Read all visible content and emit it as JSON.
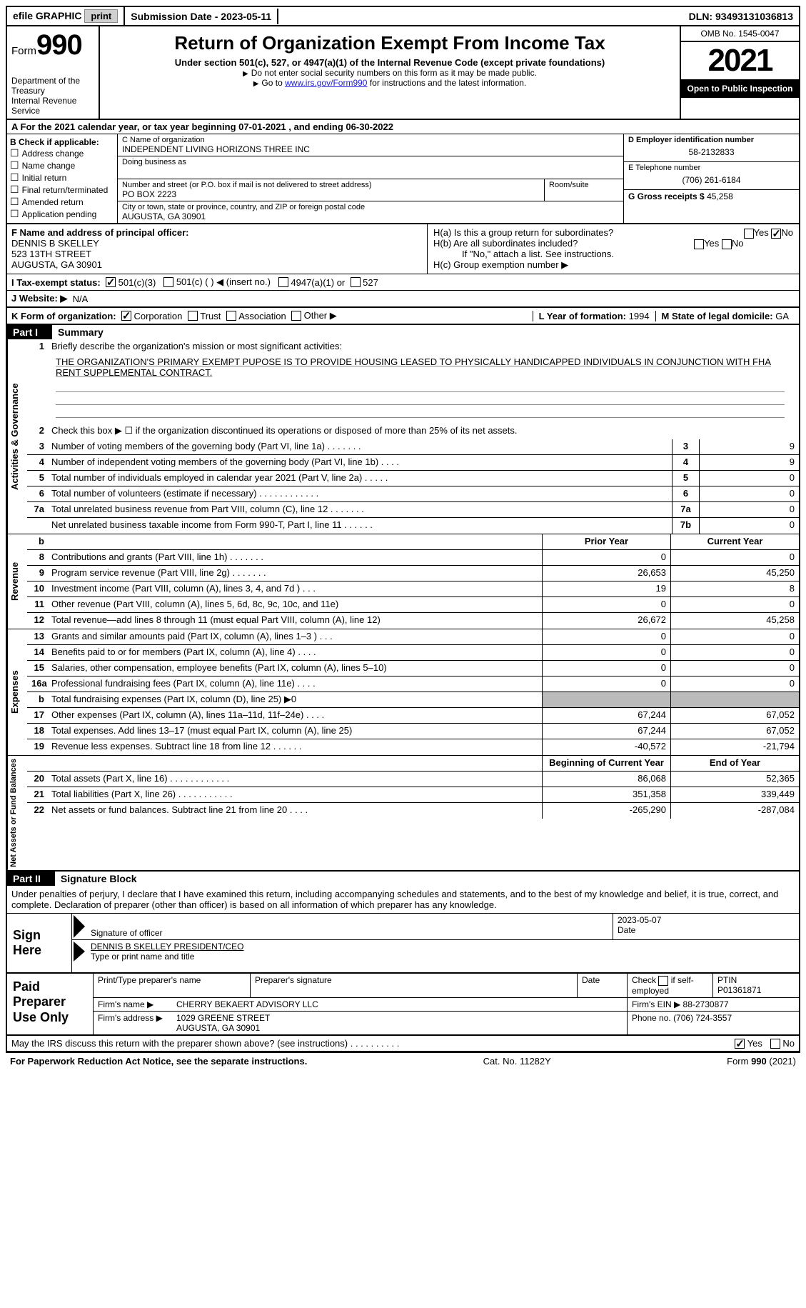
{
  "topbar": {
    "efile": "efile GRAPHIC",
    "print": "print",
    "submission_label": "Submission Date - ",
    "submission_date": "2023-05-11",
    "dln_label": "DLN: ",
    "dln": "93493131036813"
  },
  "header": {
    "form_label": "Form",
    "form_no": "990",
    "dept": "Department of the Treasury",
    "irs": "Internal Revenue Service",
    "title": "Return of Organization Exempt From Income Tax",
    "sub": "Under section 501(c), 527, or 4947(a)(1) of the Internal Revenue Code (except private foundations)",
    "note1": "Do not enter social security numbers on this form as it may be made public.",
    "note2_pre": "Go to ",
    "note2_link": "www.irs.gov/Form990",
    "note2_post": " for instructions and the latest information.",
    "omb": "OMB No. 1545-0047",
    "year": "2021",
    "otpi": "Open to Public Inspection"
  },
  "line_a": {
    "text": "For the 2021 calendar year, or tax year beginning 07-01-2021    , and ending 06-30-2022"
  },
  "box_b": {
    "title": "B Check if applicable:",
    "items": [
      "Address change",
      "Name change",
      "Initial return",
      "Final return/terminated",
      "Amended return",
      "Application pending"
    ]
  },
  "box_c": {
    "name_label": "C Name of organization",
    "name": "INDEPENDENT LIVING HORIZONS THREE INC",
    "dba_label": "Doing business as",
    "dba": "",
    "addr_label": "Number and street (or P.O. box if mail is not delivered to street address)",
    "room_label": "Room/suite",
    "addr": "PO BOX 2223",
    "city_label": "City or town, state or province, country, and ZIP or foreign postal code",
    "city": "AUGUSTA, GA  30901"
  },
  "box_d": {
    "ein_label": "D Employer identification number",
    "ein": "58-2132833",
    "tel_label": "E Telephone number",
    "tel": "(706) 261-6184",
    "g_label": "G Gross receipts $",
    "g_val": "45,258"
  },
  "box_f": {
    "label": "F  Name and address of principal officer:",
    "name": "DENNIS B SKELLEY",
    "street": "523 13TH STREET",
    "city": "AUGUSTA, GA  30901"
  },
  "box_h": {
    "ha": "H(a)  Is this a group return for subordinates?",
    "hb": "H(b)  Are all subordinates included?",
    "hb_note": "If \"No,\" attach a list. See instructions.",
    "hc": "H(c)  Group exemption number ▶",
    "yes": "Yes",
    "no": "No"
  },
  "line_i": {
    "label": "I    Tax-exempt status:",
    "o1": "501(c)(3)",
    "o2": "501(c) (   ) ◀ (insert no.)",
    "o3": "4947(a)(1) or",
    "o4": "527"
  },
  "line_j": {
    "label": "J   Website: ▶",
    "val": "N/A"
  },
  "line_k": {
    "label": "K Form of organization:",
    "o1": "Corporation",
    "o2": "Trust",
    "o3": "Association",
    "o4": "Other ▶",
    "l_label": "L Year of formation:",
    "l_val": "1994",
    "m_label": "M State of legal domicile:",
    "m_val": "GA"
  },
  "parts": {
    "p1": "Part I",
    "p1t": "Summary",
    "p2": "Part II",
    "p2t": "Signature Block"
  },
  "summary": {
    "q1": "Briefly describe the organization's mission or most significant activities:",
    "mission": "THE ORGANIZATION'S PRIMARY EXEMPT PUPOSE IS TO PROVIDE HOUSING LEASED TO PHYSICALLY HANDICAPPED INDIVIDUALS IN CONJUNCTION WITH FHA RENT SUPPLEMENTAL CONTRACT.",
    "q2": "Check this box ▶ ☐  if the organization discontinued its operations or disposed of more than 25% of its net assets.",
    "rows_ag": [
      {
        "n": "3",
        "d": "Number of voting members of the governing body (Part VI, line 1a)   .    .    .    .    .    .    .",
        "c": "3",
        "v": "9"
      },
      {
        "n": "4",
        "d": "Number of independent voting members of the governing body (Part VI, line 1b)   .   .   .   .",
        "c": "4",
        "v": "9"
      },
      {
        "n": "5",
        "d": "Total number of individuals employed in calendar year 2021 (Part V, line 2a)   .   .   .   .   .",
        "c": "5",
        "v": "0"
      },
      {
        "n": "6",
        "d": "Total number of volunteers (estimate if necessary)   .   .   .   .   .   .   .   .   .   .   .   .",
        "c": "6",
        "v": "0"
      },
      {
        "n": "7a",
        "d": "Total unrelated business revenue from Part VIII, column (C), line 12   .   .   .   .   .   .   .",
        "c": "7a",
        "v": "0"
      },
      {
        "n": "",
        "d": "Net unrelated business taxable income from Form 990-T, Part I, line 11   .   .   .   .   .   .",
        "c": "7b",
        "v": "0"
      }
    ],
    "col_prior": "Prior Year",
    "col_current": "Current Year",
    "rows_rev": [
      {
        "n": "8",
        "d": "Contributions and grants (Part VIII, line 1h)   .   .   .   .   .   .   .",
        "p": "0",
        "c": "0"
      },
      {
        "n": "9",
        "d": "Program service revenue (Part VIII, line 2g)   .   .   .   .   .   .   .",
        "p": "26,653",
        "c": "45,250"
      },
      {
        "n": "10",
        "d": "Investment income (Part VIII, column (A), lines 3, 4, and 7d )   .   .   .",
        "p": "19",
        "c": "8"
      },
      {
        "n": "11",
        "d": "Other revenue (Part VIII, column (A), lines 5, 6d, 8c, 9c, 10c, and 11e)",
        "p": "0",
        "c": "0"
      },
      {
        "n": "12",
        "d": "Total revenue—add lines 8 through 11 (must equal Part VIII, column (A), line 12)",
        "p": "26,672",
        "c": "45,258"
      }
    ],
    "rows_exp": [
      {
        "n": "13",
        "d": "Grants and similar amounts paid (Part IX, column (A), lines 1–3 )   .   .   .",
        "p": "0",
        "c": "0"
      },
      {
        "n": "14",
        "d": "Benefits paid to or for members (Part IX, column (A), line 4)   .   .   .   .",
        "p": "0",
        "c": "0"
      },
      {
        "n": "15",
        "d": "Salaries, other compensation, employee benefits (Part IX, column (A), lines 5–10)",
        "p": "0",
        "c": "0"
      },
      {
        "n": "16a",
        "d": "Professional fundraising fees (Part IX, column (A), line 11e)   .   .   .   .",
        "p": "0",
        "c": "0"
      },
      {
        "n": "b",
        "d": "Total fundraising expenses (Part IX, column (D), line 25) ▶0",
        "p": "",
        "c": "",
        "gray": true
      },
      {
        "n": "17",
        "d": "Other expenses (Part IX, column (A), lines 11a–11d, 11f–24e)   .   .   .   .",
        "p": "67,244",
        "c": "67,052"
      },
      {
        "n": "18",
        "d": "Total expenses. Add lines 13–17 (must equal Part IX, column (A), line 25)",
        "p": "67,244",
        "c": "67,052"
      },
      {
        "n": "19",
        "d": "Revenue less expenses. Subtract line 18 from line 12   .   .   .   .   .   .",
        "p": "-40,572",
        "c": "-21,794"
      }
    ],
    "col_beg": "Beginning of Current Year",
    "col_end": "End of Year",
    "rows_na": [
      {
        "n": "20",
        "d": "Total assets (Part X, line 16)   .   .   .   .   .   .   .   .   .   .   .   .",
        "p": "86,068",
        "c": "52,365"
      },
      {
        "n": "21",
        "d": "Total liabilities (Part X, line 26)   .   .   .   .   .   .   .   .   .   .   .",
        "p": "351,358",
        "c": "339,449"
      },
      {
        "n": "22",
        "d": "Net assets or fund balances. Subtract line 21 from line 20   .   .   .   .",
        "p": "-265,290",
        "c": "-287,084"
      }
    ],
    "side_ag": "Activities & Governance",
    "side_rev": "Revenue",
    "side_exp": "Expenses",
    "side_na": "Net Assets or Fund Balances"
  },
  "sig": {
    "penalty": "Under penalties of perjury, I declare that I have examined this return, including accompanying schedules and statements, and to the best of my knowledge and belief, it is true, correct, and complete. Declaration of preparer (other than officer) is based on all information of which preparer has any knowledge.",
    "sign_here": "Sign Here",
    "sig_of": "Signature of officer",
    "date": "2023-05-07",
    "name": "DENNIS B SKELLEY PRESIDENT/CEO",
    "name_lbl": "Type or print name and title"
  },
  "paid": {
    "label": "Paid Preparer Use Only",
    "h1": "Print/Type preparer's name",
    "h2": "Preparer's signature",
    "h3": "Date",
    "h4_a": "Check",
    "h4_b": "if self-employed",
    "h5": "PTIN",
    "ptin": "P01361871",
    "firm_l": "Firm's name    ▶",
    "firm": "CHERRY BEKAERT ADVISORY LLC",
    "ein_l": "Firm's EIN ▶",
    "ein": "88-2730877",
    "addr_l": "Firm's address ▶",
    "addr1": "1029 GREENE STREET",
    "addr2": "AUGUSTA, GA  30901",
    "phone_l": "Phone no.",
    "phone": "(706) 724-3557"
  },
  "discuss": {
    "q": "May the IRS discuss this return with the preparer shown above? (see instructions)   .    .    .    .    .    .    .    .    .    .",
    "yes": "Yes",
    "no": "No"
  },
  "footer": {
    "left": "For Paperwork Reduction Act Notice, see the separate instructions.",
    "mid": "Cat. No. 11282Y",
    "right": "Form 990 (2021)"
  }
}
